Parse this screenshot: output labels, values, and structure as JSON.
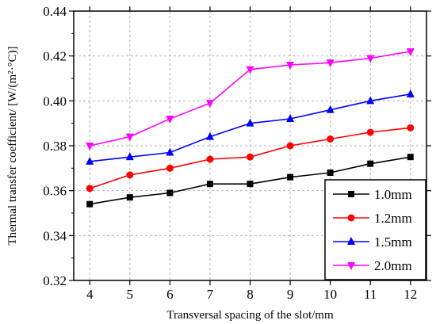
{
  "chart_data": {
    "type": "line",
    "xlabel": "Transversal spacing of the slot/mm",
    "ylabel": "Thermal transfer coefficient/ [W/(m²·°C)]",
    "x": [
      4,
      5,
      6,
      7,
      8,
      9,
      10,
      11,
      12
    ],
    "xlim": [
      3.6,
      12.4
    ],
    "ylim": [
      0.32,
      0.44
    ],
    "yticks": [
      0.32,
      0.34,
      0.36,
      0.38,
      0.4,
      0.42,
      0.44
    ],
    "ytick_labels": [
      "0.32",
      "0.34",
      "0.36",
      "0.38",
      "0.40",
      "0.42",
      "0.44"
    ],
    "xtick_labels": [
      "4",
      "5",
      "6",
      "7",
      "8",
      "9",
      "10",
      "11",
      "12"
    ],
    "grid": true,
    "legend_position": "bottom-right",
    "series": [
      {
        "name": "1.0mm",
        "color": "#000000",
        "marker": "square",
        "values": [
          0.354,
          0.357,
          0.359,
          0.363,
          0.363,
          0.366,
          0.368,
          0.372,
          0.375
        ]
      },
      {
        "name": "1.2mm",
        "color": "#ff0000",
        "marker": "circle",
        "values": [
          0.361,
          0.367,
          0.37,
          0.374,
          0.375,
          0.38,
          0.383,
          0.386,
          0.388
        ]
      },
      {
        "name": "1.5mm",
        "color": "#0000ff",
        "marker": "triangle-up",
        "values": [
          0.373,
          0.375,
          0.377,
          0.384,
          0.39,
          0.392,
          0.396,
          0.4,
          0.403
        ]
      },
      {
        "name": "2.0mm",
        "color": "#ff00ff",
        "marker": "triangle-down",
        "values": [
          0.38,
          0.384,
          0.392,
          0.399,
          0.414,
          0.416,
          0.417,
          0.419,
          0.422
        ]
      }
    ]
  }
}
